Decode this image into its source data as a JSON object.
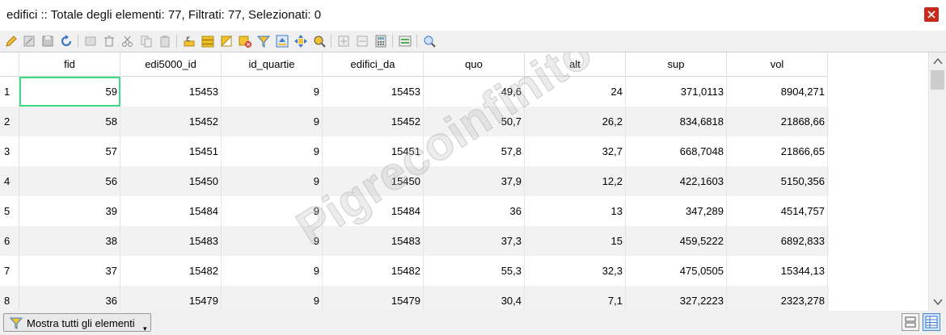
{
  "window": {
    "title": "edifici :: Totale degli elementi: 77, Filtrati: 77, Selezionati: 0"
  },
  "toolbar": {
    "buttons": [
      "edit-pencil-icon",
      "toggle-multi-edit-icon",
      "save-edits-icon",
      "reload-icon",
      "add-feature-icon",
      "delete-icon",
      "cut-icon",
      "copy-icon",
      "paste-icon",
      "expression-select-icon",
      "select-all-icon",
      "invert-selection-icon",
      "deselect-icon",
      "filter-select-icon",
      "move-selection-top-icon",
      "pan-to-selection-icon",
      "zoom-to-selection-icon",
      "new-field-icon",
      "delete-field-icon",
      "field-calculator-icon",
      "conditional-formatting-icon",
      "dock-icon"
    ]
  },
  "table": {
    "columns": [
      "fid",
      "edi5000_id",
      "id_quartie",
      "edifici_da",
      "quo",
      "alt",
      "sup",
      "vol"
    ],
    "rows": [
      {
        "n": "1",
        "cells": [
          "59",
          "15453",
          "9",
          "15453",
          "49,6",
          "24",
          "371,0113",
          "8904,271"
        ]
      },
      {
        "n": "2",
        "cells": [
          "58",
          "15452",
          "9",
          "15452",
          "50,7",
          "26,2",
          "834,6818",
          "21868,66"
        ]
      },
      {
        "n": "3",
        "cells": [
          "57",
          "15451",
          "9",
          "15451",
          "57,8",
          "32,7",
          "668,7048",
          "21866,65"
        ]
      },
      {
        "n": "4",
        "cells": [
          "56",
          "15450",
          "9",
          "15450",
          "37,9",
          "12,2",
          "422,1603",
          "5150,356"
        ]
      },
      {
        "n": "5",
        "cells": [
          "39",
          "15484",
          "9",
          "15484",
          "36",
          "13",
          "347,289",
          "4514,757"
        ]
      },
      {
        "n": "6",
        "cells": [
          "38",
          "15483",
          "9",
          "15483",
          "37,3",
          "15",
          "459,5222",
          "6892,833"
        ]
      },
      {
        "n": "7",
        "cells": [
          "37",
          "15482",
          "9",
          "15482",
          "55,3",
          "32,3",
          "475,0505",
          "15344,13"
        ]
      },
      {
        "n": "8",
        "cells": [
          "36",
          "15479",
          "9",
          "15479",
          "30,4",
          "7,1",
          "327,2223",
          "2323,278"
        ]
      }
    ]
  },
  "watermark": "Pigrecoinfinito",
  "statusbar": {
    "filter_label": "Mostra tutti gli elementi"
  },
  "colors": {
    "focus": "#3ddc84",
    "close": "#c42b1c",
    "alt_row": "#f2f2f2"
  }
}
